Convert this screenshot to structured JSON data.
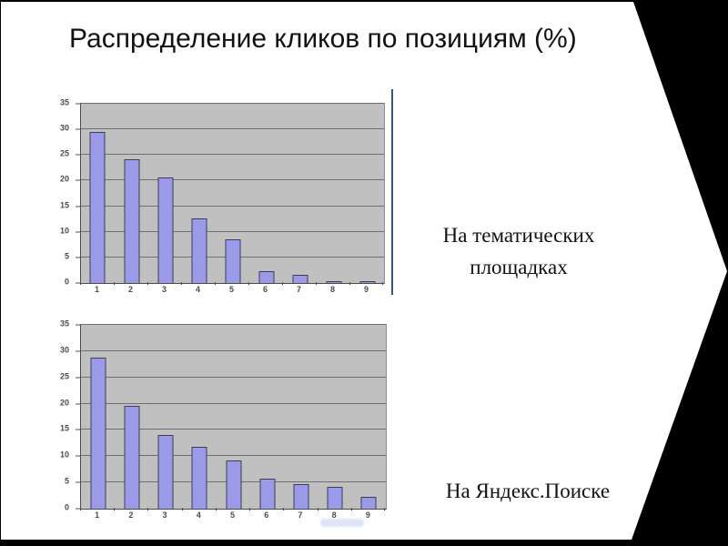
{
  "slide": {
    "title": "Распределение кликов по позициям (%)"
  },
  "chart_data": [
    {
      "type": "bar",
      "label": "На тематических площадках",
      "categories": [
        "1",
        "2",
        "3",
        "4",
        "5",
        "6",
        "7",
        "8",
        "9"
      ],
      "values": [
        29.5,
        24.1,
        20.7,
        12.7,
        8.5,
        2.3,
        1.6,
        0.4,
        0.4
      ],
      "xlabel": "",
      "ylabel": "",
      "ylim": [
        0,
        35
      ],
      "yticks": [
        0,
        5,
        10,
        15,
        20,
        25,
        30,
        35
      ],
      "grid": true,
      "legend": false
    },
    {
      "type": "bar",
      "label": "На Яндекс.Поиске",
      "categories": [
        "1",
        "2",
        "3",
        "4",
        "5",
        "6",
        "7",
        "8",
        "9"
      ],
      "values": [
        28.8,
        19.6,
        14.1,
        11.8,
        9.2,
        5.8,
        4.6,
        4.1,
        2.3
      ],
      "xlabel": "",
      "ylabel": "",
      "ylim": [
        0,
        35
      ],
      "yticks": [
        0,
        5,
        10,
        15,
        20,
        25,
        30,
        35
      ],
      "grid": true,
      "legend": false
    }
  ],
  "colors": {
    "backdrop": "#000000",
    "slide_background": "#ffffff",
    "plot_background": "#c0c0c0",
    "bar_fill": "#9a9ae8",
    "bar_border": "#3d3d55",
    "gridline": "#707070",
    "axis": "#4c4c4c",
    "tick_label": "#4d4d4d",
    "divider_line": "#35587a"
  }
}
